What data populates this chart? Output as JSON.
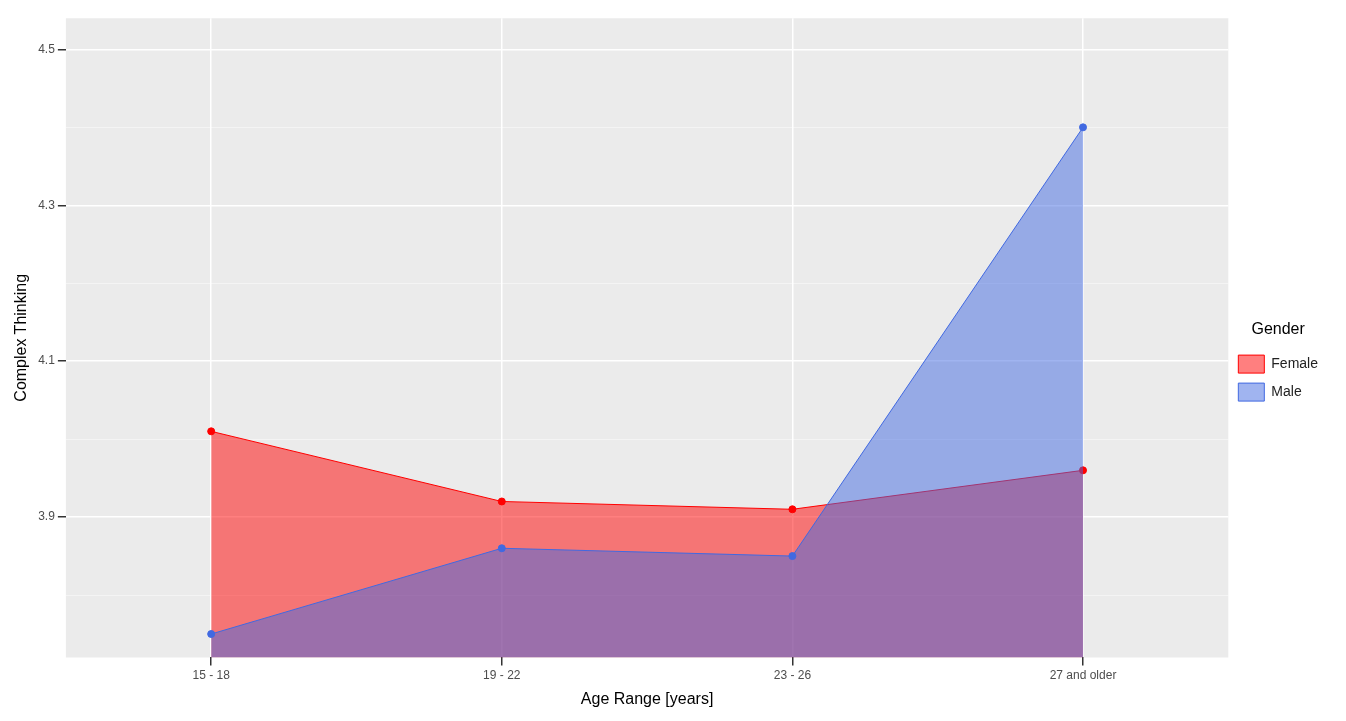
{
  "chart_data": {
    "type": "area",
    "xlabel": "Age Range [years]",
    "ylabel": "Complex Thinking",
    "legend_title": "Gender",
    "categories": [
      "15 - 18",
      "19 - 22",
      "23 - 26",
      "27 and older"
    ],
    "series": [
      {
        "name": "Female",
        "color": "#ff0000",
        "values": [
          4.01,
          3.92,
          3.91,
          3.96
        ]
      },
      {
        "name": "Male",
        "color": "#4169e1",
        "values": [
          3.75,
          3.86,
          3.85,
          4.4
        ]
      }
    ],
    "ylim": [
      3.72,
      4.54
    ],
    "yticks": [
      {
        "value": 3.8,
        "label": null
      },
      3.9,
      {
        "value": 4.0,
        "label": null
      },
      4.1,
      {
        "value": 4.2,
        "label": null
      },
      4.3,
      {
        "value": 4.4,
        "label": null
      },
      4.5
    ],
    "grid": true,
    "legend": "right",
    "marker": "circle",
    "line_style": "solid"
  }
}
